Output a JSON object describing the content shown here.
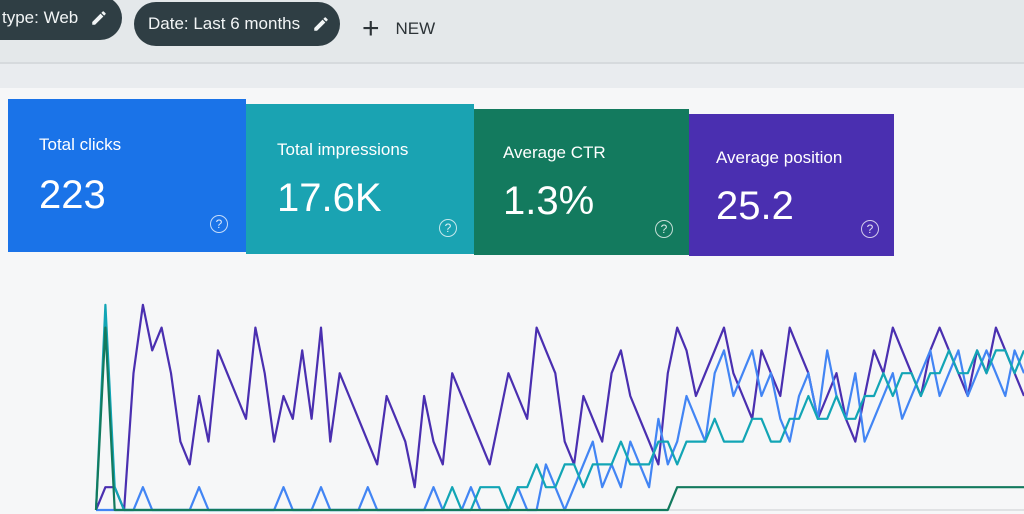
{
  "filters": {
    "type_chip": "type: Web",
    "date_chip": "Date: Last 6 months",
    "new_label": "NEW"
  },
  "metrics": [
    {
      "label": "Total clicks",
      "value": "223",
      "color": "#1a73e8"
    },
    {
      "label": "Total impressions",
      "value": "17.6K",
      "color": "#1aa3b2"
    },
    {
      "label": "Average CTR",
      "value": "1.3%",
      "color": "#137a5e"
    },
    {
      "label": "Average position",
      "value": "25.2",
      "color": "#4a2fb0"
    }
  ],
  "chart_data": {
    "type": "line",
    "series": [
      {
        "color": "#4a2fb0",
        "values": [
          0,
          1,
          1,
          0,
          6,
          9,
          7,
          8,
          6,
          3,
          2,
          5,
          3,
          7,
          6,
          5,
          4,
          8,
          6,
          3,
          5,
          4,
          7,
          4,
          8,
          3,
          6,
          5,
          4,
          3,
          2,
          5,
          4,
          3,
          1,
          5,
          3,
          2,
          6,
          5,
          4,
          3,
          2,
          4,
          6,
          5,
          4,
          8,
          7,
          6,
          3,
          2,
          5,
          4,
          3,
          6,
          7,
          5,
          4,
          3,
          2,
          6,
          8,
          7,
          5,
          6,
          7,
          8,
          6,
          5,
          4,
          7,
          6,
          5,
          8,
          7,
          6,
          4,
          5,
          6,
          4,
          3,
          5,
          7,
          6,
          8,
          7,
          6,
          5,
          7,
          8,
          7,
          6,
          5,
          7,
          6,
          8,
          7,
          6,
          5
        ]
      },
      {
        "color": "#4285f4",
        "values": [
          0,
          0,
          0,
          0,
          0,
          1,
          0,
          0,
          0,
          0,
          0,
          1,
          0,
          0,
          0,
          0,
          0,
          0,
          0,
          0,
          1,
          0,
          0,
          0,
          1,
          0,
          0,
          0,
          0,
          1,
          0,
          0,
          0,
          0,
          0,
          0,
          1,
          0,
          0,
          0,
          1,
          0,
          0,
          0,
          0,
          1,
          0,
          0,
          2,
          1,
          0,
          1,
          2,
          3,
          1,
          2,
          1,
          3,
          2,
          1,
          4,
          2,
          3,
          5,
          4,
          3,
          6,
          7,
          5,
          6,
          7,
          5,
          6,
          4,
          3,
          5,
          6,
          4,
          7,
          5,
          4,
          6,
          3,
          4,
          5,
          6,
          4,
          5,
          6,
          7,
          5,
          6,
          7,
          5,
          6,
          7,
          6,
          5,
          7,
          6
        ]
      },
      {
        "color": "#12a5b5",
        "values": [
          0,
          9,
          1,
          0,
          0,
          0,
          0,
          0,
          0,
          0,
          0,
          0,
          0,
          0,
          0,
          0,
          0,
          0,
          0,
          0,
          0,
          0,
          0,
          0,
          0,
          0,
          0,
          0,
          0,
          0,
          0,
          0,
          0,
          0,
          0,
          0,
          0,
          0,
          1,
          0,
          0,
          1,
          1,
          1,
          0,
          1,
          1,
          2,
          1,
          1,
          2,
          2,
          1,
          2,
          2,
          2,
          3,
          2,
          2,
          2,
          3,
          3,
          2,
          3,
          3,
          3,
          4,
          3,
          3,
          3,
          4,
          4,
          3,
          3,
          4,
          4,
          5,
          4,
          4,
          5,
          4,
          4,
          5,
          5,
          6,
          5,
          6,
          6,
          5,
          6,
          6,
          7,
          6,
          6,
          7,
          6,
          7,
          7,
          6,
          7
        ]
      },
      {
        "color": "#137a5e",
        "values": [
          0,
          8,
          0,
          0,
          0,
          0,
          0,
          0,
          0,
          0,
          0,
          0,
          0,
          0,
          0,
          0,
          0,
          0,
          0,
          0,
          0,
          0,
          0,
          0,
          0,
          0,
          0,
          0,
          0,
          0,
          0,
          0,
          0,
          0,
          0,
          0,
          0,
          0,
          0,
          0,
          0,
          0,
          0,
          0,
          0,
          0,
          0,
          0,
          0,
          0,
          0,
          0,
          0,
          0,
          0,
          0,
          0,
          0,
          0,
          0,
          0,
          0,
          1,
          1,
          1,
          1,
          1,
          1,
          1,
          1,
          1,
          1,
          1,
          1,
          1,
          1,
          1,
          1,
          1,
          1,
          1,
          1,
          1,
          1,
          1,
          1,
          1,
          1,
          1,
          1,
          1,
          1,
          1,
          1,
          1,
          1,
          1,
          1,
          1,
          1
        ]
      }
    ],
    "ylim": [
      0,
      10
    ],
    "grid": false
  }
}
